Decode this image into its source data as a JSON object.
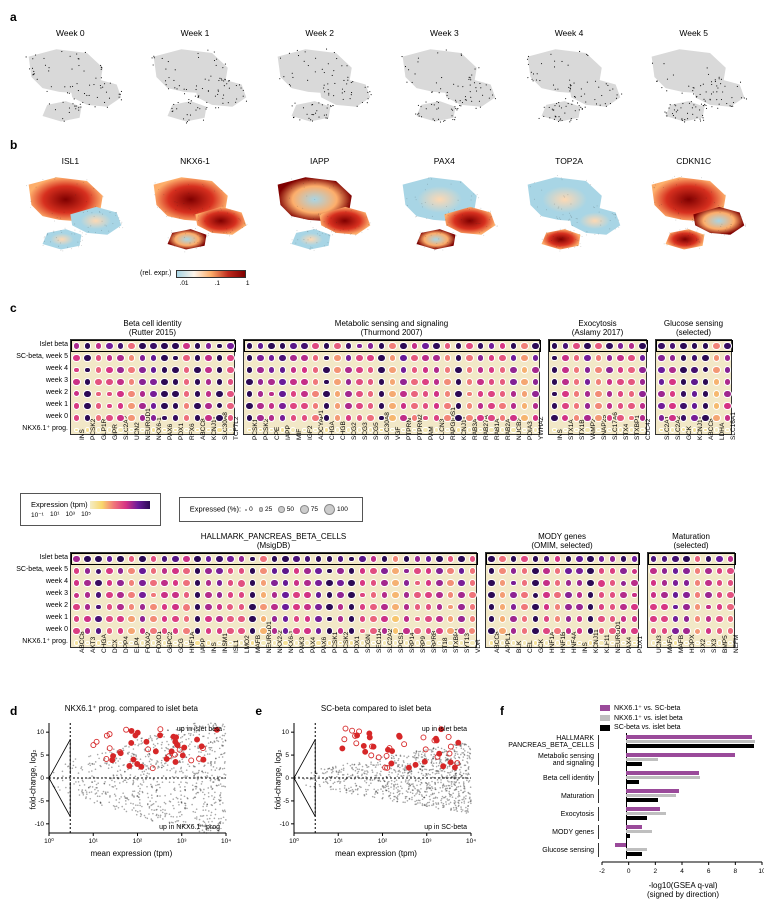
{
  "panelA": {
    "titles": [
      "Week 0",
      "Week 1",
      "Week 2",
      "Week 3",
      "Week 4",
      "Week 5"
    ],
    "bg_color": "#d9d9d9",
    "pt_color": "#000000"
  },
  "panelB": {
    "genes": [
      "ISL1",
      "NKX6-1",
      "IAPP",
      "PAX4",
      "TOP2A",
      "CDKN1C"
    ],
    "colorbar": {
      "label": "(rel. expr.)",
      "ticks": [
        ".01",
        ".1",
        "1"
      ]
    }
  },
  "panelC": {
    "row_labels": [
      "Islet beta",
      "SC-beta, week 5",
      "week 4",
      "week 3",
      "week 2",
      "week 1",
      "week 0",
      "NKX6.1⁺ prog."
    ],
    "groups_top": [
      {
        "title": "Beta cell identity\n(Rutter 2015)",
        "genes": [
          "INS",
          "PCSK2",
          "GLP1R",
          "GIPR",
          "SLC2A2",
          "UCN2",
          "NEUROD1",
          "NKX6-1",
          "PAX6",
          "PDX1",
          "RFX6",
          "ABCC8",
          "KCNJ11",
          "SLC30A8",
          "TCF7L2"
        ]
      },
      {
        "title": "Metabolic sensing and signaling\n(Thurmond 2007)",
        "genes": [
          "PCSK1",
          "PCSK2",
          "CPE",
          "IAPP",
          "MIF",
          "IGF2",
          "ADCYAP1",
          "CHGA",
          "CHGB",
          "SCG2",
          "SCG3",
          "SCG5",
          "SLC30A8",
          "VGF",
          "PTPRN",
          "PTPRN2",
          "PAM",
          "CLCN3",
          "RAPGIDS1",
          "KCNJ11",
          "RAB3A",
          "RAB27A",
          "RAB1A",
          "RAB2A",
          "NUCB2",
          "PDIA3",
          "YWHAZ"
        ]
      },
      {
        "title": "Exocytosis\n(Aslamy 2017)",
        "genes": [
          "INS",
          "STX1A",
          "STX1B",
          "VAMP2",
          "SNAP25",
          "SLC17A6",
          "STX4",
          "STXBP1",
          "CDC42"
        ]
      },
      {
        "title": "Glucose sensing\n(selected)",
        "genes": [
          "SLC2A1",
          "SLC2A2",
          "GCK",
          "KCNJ11",
          "ABCC8",
          "LDHA",
          "SLC16A1"
        ]
      }
    ],
    "groups_bottom": [
      {
        "title": "HALLMARK_PANCREAS_BETA_CELLS\n(MsigDB)",
        "genes": [
          "ABCC8",
          "AKT3",
          "CHGA",
          "DCX",
          "DPP4",
          "ELP4",
          "FOXA2",
          "FOXO1",
          "G6PC2",
          "GCG",
          "HNF1A",
          "IAPP",
          "INS",
          "INSM1",
          "ISL1",
          "LMO2",
          "MAFB",
          "NEUROD1",
          "NKX2-2",
          "NKX6-1",
          "PAK3",
          "PAX4",
          "PAX6",
          "PCSK1",
          "PCSK2",
          "PDX1",
          "SCGN",
          "SEC11A",
          "SLC2A2",
          "SPCS1",
          "SRP14",
          "SRP9",
          "SRPRB",
          "ST18",
          "STXBP1",
          "SYT13",
          "VDR"
        ]
      },
      {
        "title": "MODY genes\n(OMIM, selected)",
        "genes": [
          "ABCC8",
          "APPL1",
          "BLK",
          "CEL",
          "GCK",
          "HNF1A",
          "HNF1B",
          "HNF4A",
          "INS",
          "KCNJ11",
          "KLF11",
          "NEUROD1",
          "PAX4",
          "PDX1"
        ]
      },
      {
        "title": "Maturation\n(selected)",
        "genes": [
          "UCN3",
          "MAFA",
          "MAFB",
          "HOPX",
          "SIX2",
          "SIX3",
          "BMP5",
          "NEFM"
        ]
      }
    ],
    "expr_colorscale": {
      "label": "Expression (tpm)",
      "ticks": [
        "10⁻¹",
        "10¹",
        "10³",
        "10⁵"
      ]
    },
    "pct_scale": {
      "label": "Expressed (%):",
      "breaks": [
        0,
        25,
        50,
        75,
        100
      ]
    }
  },
  "panel_de": {
    "d_title": "NKX6.1⁺ prog. compared to islet beta",
    "e_title": "SC-beta compared to islet beta",
    "up_hi": "up in islet beta",
    "d_lo": "up in NKX6.1⁺ prog.",
    "e_lo": "up in SC-beta",
    "ylab": "fold-change, log₂",
    "xlab": "mean expression (tpm)",
    "y_ticks": [
      -10,
      -5,
      0,
      5,
      10
    ],
    "x_ticks": [
      "10⁰",
      "10¹",
      "10²",
      "10³",
      "10⁴"
    ]
  },
  "panelF": {
    "xlab": "-log10(GSEA q-val)\n(signed by direction)",
    "x_ticks": [
      -2,
      0,
      2,
      4,
      6,
      8,
      10
    ],
    "legend": [
      {
        "label": "NKX6.1⁺ vs. SC-beta",
        "color": "#9a4a9a"
      },
      {
        "label": "NKX6.1⁺ vs. islet beta",
        "color": "#bfbfbf"
      },
      {
        "label": "SC-beta vs. islet beta",
        "color": "#000000"
      }
    ],
    "rows": [
      {
        "label": "HALLMARK\nPANCREAS_BETA_CELLS",
        "vals": [
          9.5,
          9.7,
          9.6
        ]
      },
      {
        "label": "Metabolic sensing\nand signaling",
        "vals": [
          8.2,
          2.4,
          1.2
        ]
      },
      {
        "label": "Beta cell identity",
        "vals": [
          5.5,
          5.6,
          1.0
        ]
      },
      {
        "label": "Maturation",
        "vals": [
          4.0,
          3.8,
          2.4
        ]
      },
      {
        "label": "Exocytosis",
        "vals": [
          2.6,
          3.0,
          1.6
        ]
      },
      {
        "label": "MODY genes",
        "vals": [
          1.2,
          2.0,
          0.3
        ]
      },
      {
        "label": "Glucose sensing",
        "vals": [
          -0.8,
          1.6,
          1.2
        ]
      }
    ]
  }
}
